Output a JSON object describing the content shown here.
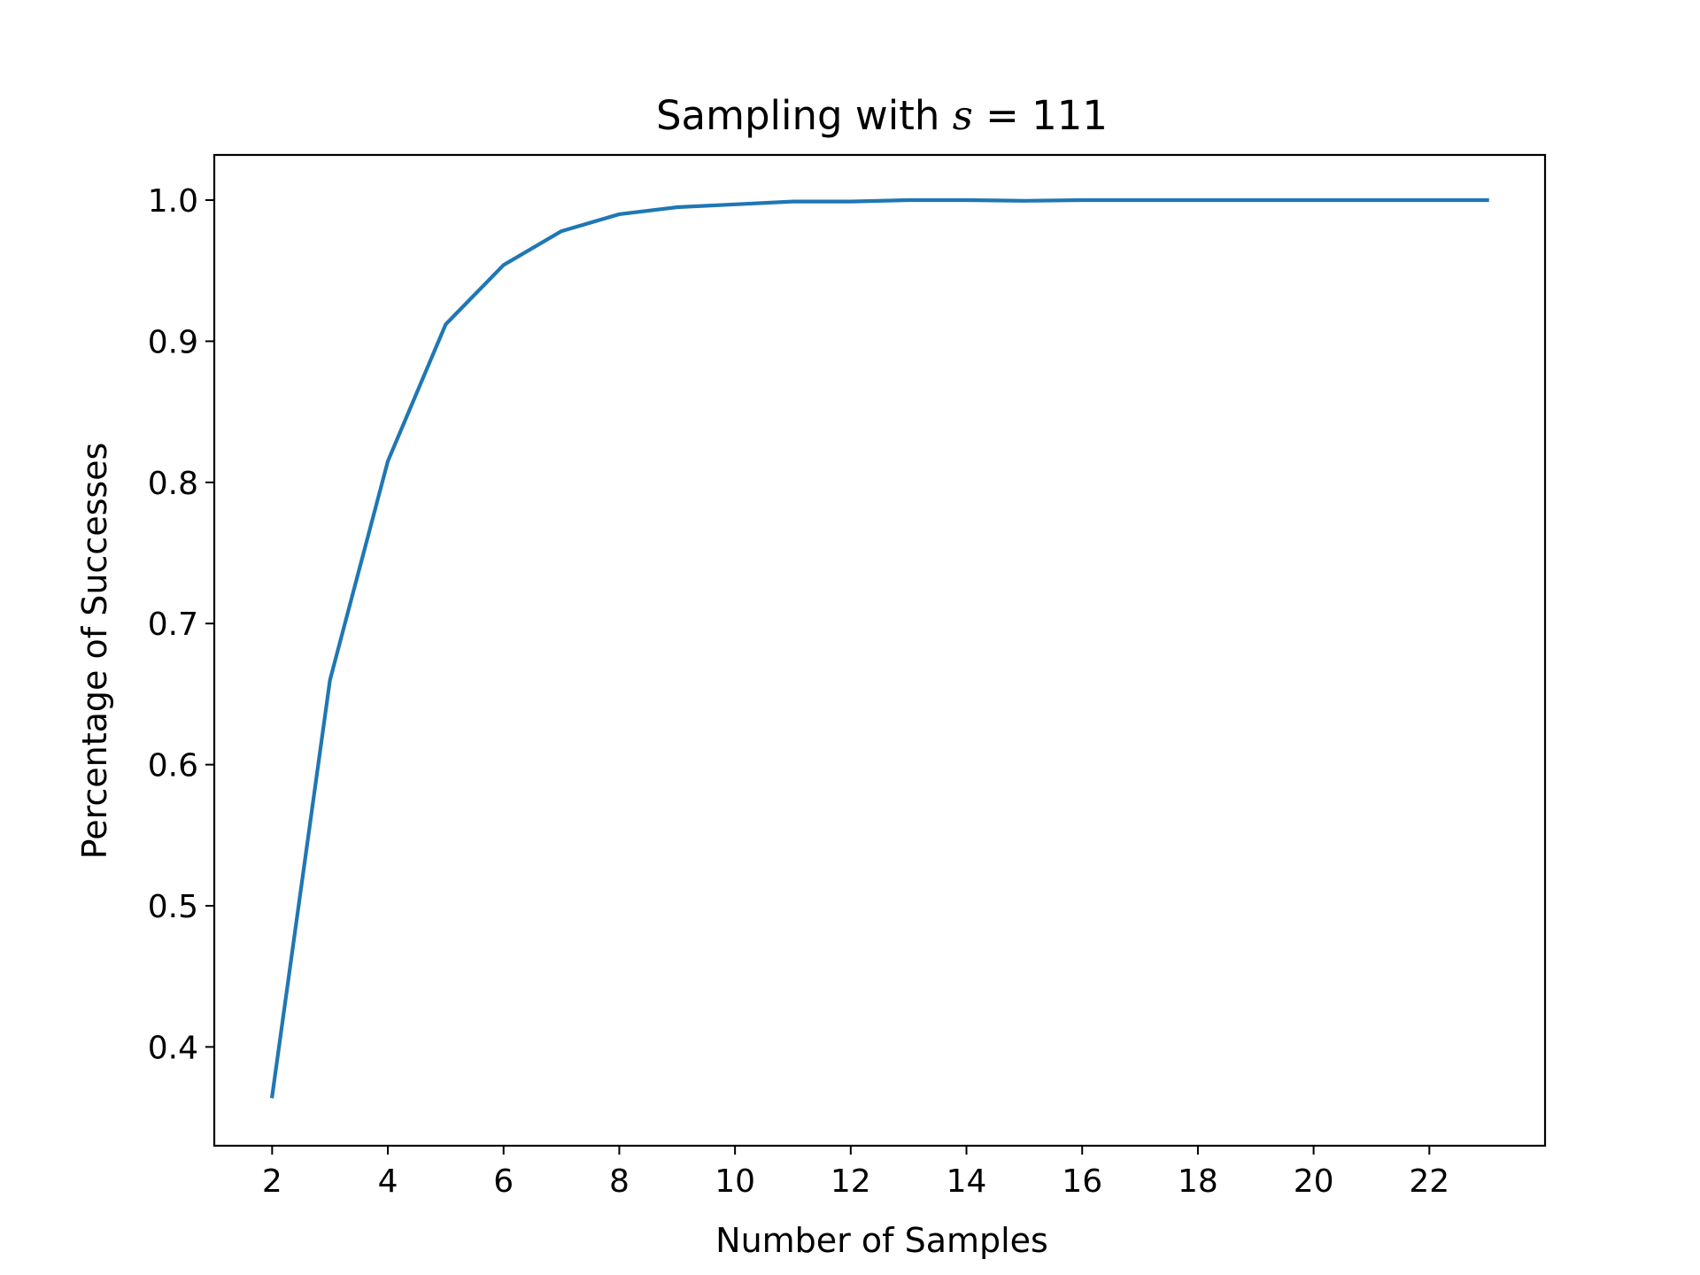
{
  "chart_data": {
    "type": "line",
    "title": {
      "prefix": "Sampling with ",
      "variable": "s",
      "relation": " = 111"
    },
    "xlabel": "Number of Samples",
    "ylabel": "Percentage of Successes",
    "xlim": [
      1,
      24
    ],
    "ylim": [
      0.33,
      1.032
    ],
    "xticks": [
      2,
      4,
      6,
      8,
      10,
      12,
      14,
      16,
      18,
      20,
      22
    ],
    "xtick_labels": [
      "2",
      "4",
      "6",
      "8",
      "10",
      "12",
      "14",
      "16",
      "18",
      "20",
      "22"
    ],
    "yticks": [
      0.4,
      0.5,
      0.6,
      0.7,
      0.8,
      0.9,
      1.0
    ],
    "ytick_labels": [
      "0.4",
      "0.5",
      "0.6",
      "0.7",
      "0.8",
      "0.9",
      "1.0"
    ],
    "grid": false,
    "line_color": "#1f77b4",
    "series": [
      {
        "x": [
          2,
          3,
          4,
          5,
          6,
          7,
          8,
          9,
          10,
          11,
          12,
          13,
          14,
          15,
          16,
          17,
          18,
          19,
          20,
          21,
          22,
          23
        ],
        "values": [
          0.365,
          0.66,
          0.815,
          0.912,
          0.954,
          0.978,
          0.99,
          0.995,
          0.997,
          0.999,
          0.999,
          1.0,
          1.0,
          0.9995,
          1.0,
          1.0,
          1.0,
          1.0,
          1.0,
          1.0,
          1.0,
          1.0
        ]
      }
    ]
  }
}
